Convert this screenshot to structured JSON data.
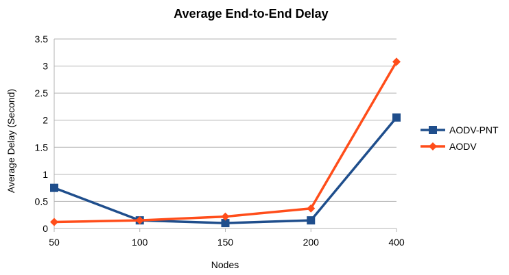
{
  "chart_data": {
    "type": "line",
    "title": "Average End-to-End Delay",
    "xlabel": "Nodes",
    "ylabel": "Average Delay (Second)",
    "categories": [
      "50",
      "100",
      "150",
      "200",
      "400"
    ],
    "ylim": [
      0,
      3.5
    ],
    "yticks": [
      "0",
      "0.5",
      "1",
      "1.5",
      "2",
      "2.5",
      "3",
      "3.5"
    ],
    "grid": true,
    "legend_position": "right",
    "series": [
      {
        "name": "AODV-PNT",
        "values": [
          0.75,
          0.15,
          0.1,
          0.15,
          2.05
        ],
        "color": "#1f4e8c",
        "marker": "square"
      },
      {
        "name": "AODV",
        "values": [
          0.12,
          0.15,
          0.22,
          0.37,
          3.08
        ],
        "color": "#ff4d1a",
        "marker": "diamond"
      }
    ]
  }
}
